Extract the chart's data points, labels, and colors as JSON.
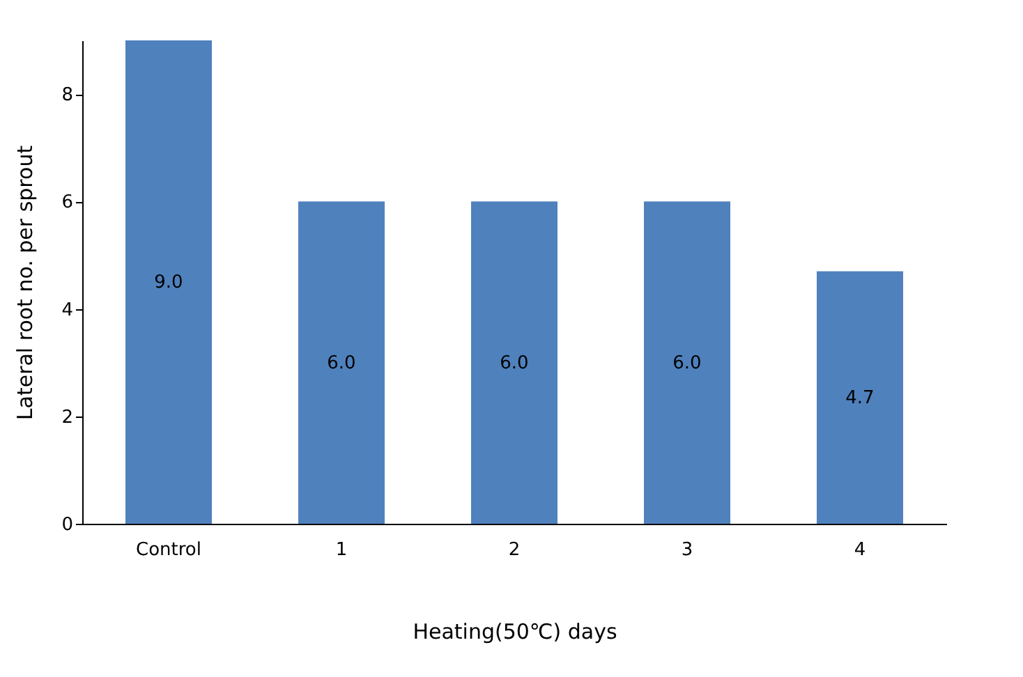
{
  "chart_data": {
    "type": "bar",
    "xlabel": "Heating(50℃) days",
    "ylabel": "Lateral root no. per sprout",
    "categories": [
      "Control",
      "1",
      "2",
      "3",
      "4"
    ],
    "values": [
      9.0,
      6.0,
      6.0,
      6.0,
      4.7
    ],
    "value_labels": [
      "9.0",
      "6.0",
      "6.0",
      "6.0",
      "4.7"
    ],
    "color": "#4f81bd",
    "ylim": [
      0,
      9
    ],
    "yticks": [
      0,
      2,
      4,
      6,
      8
    ],
    "grid": false
  }
}
